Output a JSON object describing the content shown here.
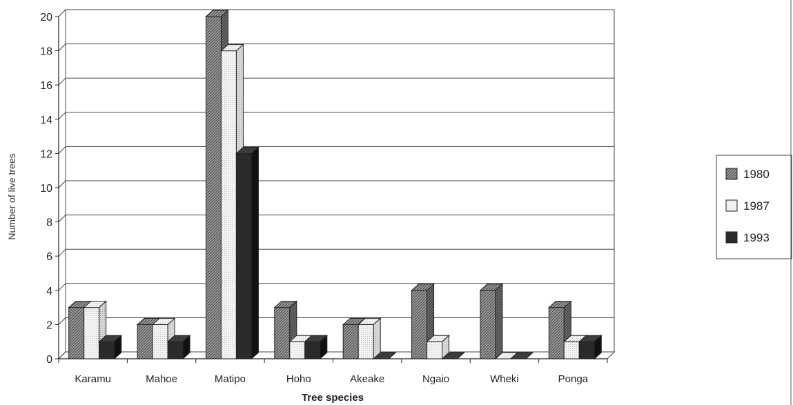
{
  "chart_data": {
    "type": "bar",
    "title": "",
    "xlabel": "Tree species",
    "ylabel": "Number of live trees",
    "categories": [
      "Karamu",
      "Mahoe",
      "Matipo",
      "Hoho",
      "Akeake",
      "Ngaio",
      "Wheki",
      "Ponga"
    ],
    "series": [
      {
        "name": "1980",
        "values": [
          3,
          2,
          20,
          3,
          2,
          4,
          4,
          3
        ]
      },
      {
        "name": "1987",
        "values": [
          3,
          2,
          18,
          1,
          2,
          1,
          0,
          1
        ]
      },
      {
        "name": "1993",
        "values": [
          1,
          1,
          12,
          1,
          0,
          0,
          0,
          1
        ]
      }
    ],
    "yticks": [
      "0",
      "2",
      "4",
      "6",
      "8",
      "10",
      "12",
      "14",
      "16",
      "18",
      "20"
    ],
    "ylim": [
      0,
      20
    ],
    "grid": true,
    "three_d": true,
    "legend_position": "right",
    "colors": {
      "1980": "#8c8c8c",
      "1987": "#ececec",
      "1993": "#333333"
    }
  }
}
